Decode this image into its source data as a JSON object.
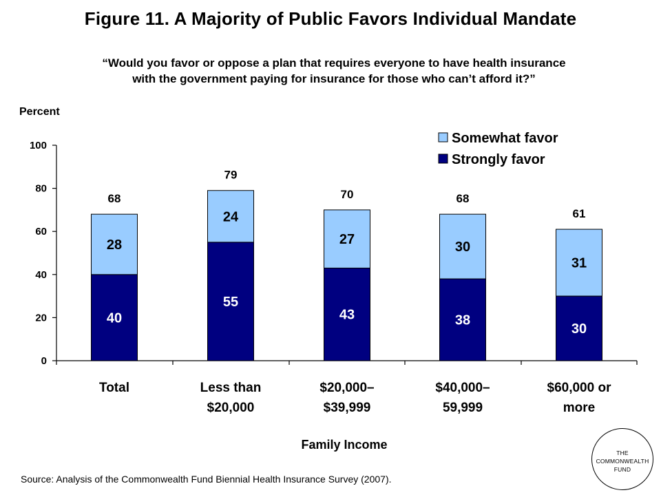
{
  "title": "Figure 11. A Majority of Public Favors Individual Mandate",
  "subtitle_line1": "“Would you favor or oppose a plan that requires everyone to have health insurance",
  "subtitle_line2": "with the government paying for insurance for those who can’t afford it?”",
  "source": "Source: Analysis of the Commonwealth Fund Biennial Health Insurance Survey (2007).",
  "logo": {
    "line1": "THE",
    "line2": "COMMONWEALTH",
    "line3": "FUND"
  },
  "colors": {
    "strongly": "#000080",
    "somewhat": "#99CCFF"
  },
  "chart_data": {
    "type": "bar",
    "stacked": true,
    "ylabel": "Percent",
    "xlabel": "Family Income",
    "ylim": [
      0,
      100
    ],
    "yticks": [
      0,
      20,
      40,
      60,
      80,
      100
    ],
    "categories": [
      [
        "Total"
      ],
      [
        "Less than",
        "$20,000"
      ],
      [
        "$20,000–",
        "$39,999"
      ],
      [
        "$40,000–",
        "59,999"
      ],
      [
        "$60,000 or",
        "more"
      ]
    ],
    "series": [
      {
        "name": "Strongly favor",
        "values": [
          40,
          55,
          43,
          38,
          30
        ]
      },
      {
        "name": "Somewhat favor",
        "values": [
          28,
          24,
          27,
          30,
          31
        ]
      }
    ],
    "totals": [
      68,
      79,
      70,
      68,
      61
    ],
    "legend": {
      "position": "top-right",
      "order": [
        "Somewhat favor",
        "Strongly favor"
      ]
    }
  }
}
